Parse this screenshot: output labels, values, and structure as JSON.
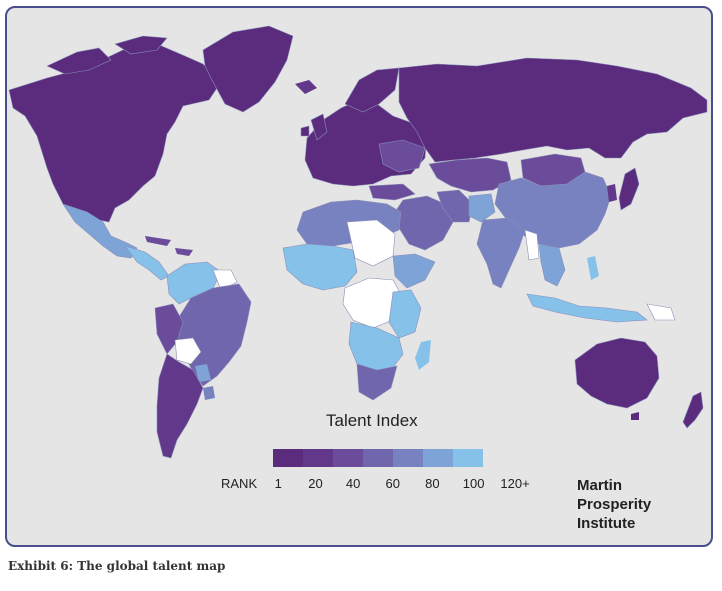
{
  "legend": {
    "title": "Talent Index",
    "rank_label": "RANK",
    "ticks": [
      "1",
      "20",
      "40",
      "60",
      "80",
      "100",
      "120+"
    ],
    "colors": [
      "#5b2c7d",
      "#62388a",
      "#6a4c9b",
      "#6f66ad",
      "#7882c0",
      "#7ea3d6",
      "#86c1ea"
    ]
  },
  "institute": {
    "line1": "Martin",
    "line2": "Prosperity",
    "line3": "Institute"
  },
  "caption": "Exhibit 6: The global talent map",
  "map_colors": {
    "ocean": "#e5e5e5",
    "no_data": "#ffffff",
    "border": "#8a8fb8"
  }
}
